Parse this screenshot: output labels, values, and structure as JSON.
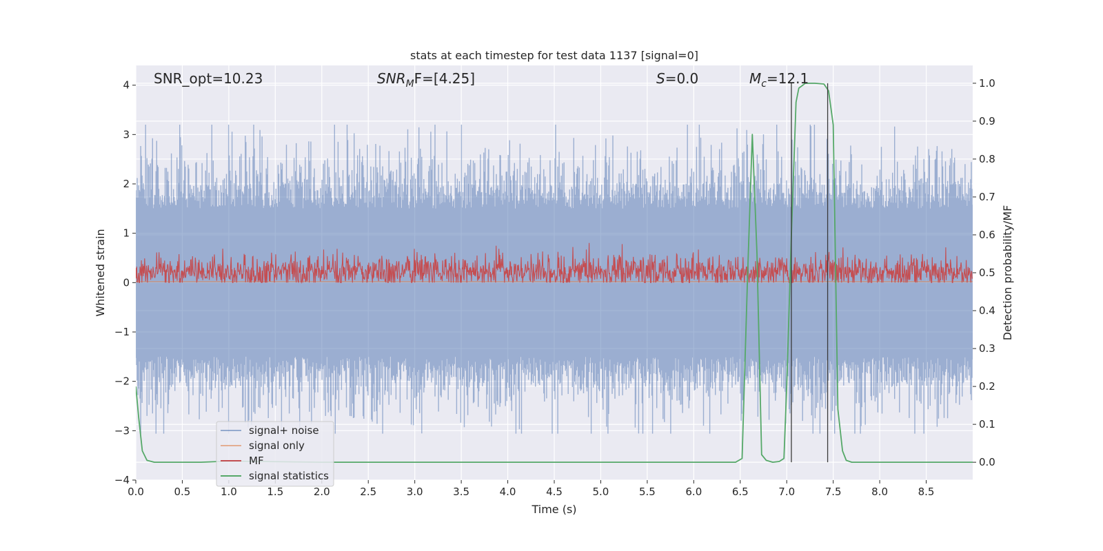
{
  "chart_data": {
    "type": "line",
    "title": "stats at each timestep for test data 1137 [signal=0]",
    "xlabel": "Time (s)",
    "ylabel_left": "Whitened strain",
    "ylabel_right": "Detection probability/MF",
    "xlim": [
      0.0,
      9.0
    ],
    "ylim_left": [
      -4.0,
      4.4
    ],
    "ylim_right": [
      -0.047,
      1.047
    ],
    "grid": true,
    "legend_position": "lower-left",
    "x_ticks": [
      0.0,
      0.5,
      1.0,
      1.5,
      2.0,
      2.5,
      3.0,
      3.5,
      4.0,
      4.5,
      5.0,
      5.5,
      6.0,
      6.5,
      7.0,
      7.5,
      8.0,
      8.5
    ],
    "x_tick_labels": [
      "0.0",
      "0.5",
      "1.0",
      "1.5",
      "2.0",
      "2.5",
      "3.0",
      "3.5",
      "4.0",
      "4.5",
      "5.0",
      "5.5",
      "6.0",
      "6.5",
      "7.0",
      "7.5",
      "8.0",
      "8.5"
    ],
    "y_left_ticks": [
      -4,
      -3,
      -2,
      -1,
      0,
      1,
      2,
      3,
      4
    ],
    "y_left_tick_labels": [
      "−4",
      "−3",
      "−2",
      "−1",
      "0",
      "1",
      "2",
      "3",
      "4"
    ],
    "y_right_ticks": [
      0.0,
      0.1,
      0.2,
      0.3,
      0.4,
      0.5,
      0.6,
      0.7,
      0.8,
      0.9,
      1.0
    ],
    "y_right_tick_labels": [
      "0.0",
      "0.1",
      "0.2",
      "0.3",
      "0.4",
      "0.5",
      "0.6",
      "0.7",
      "0.8",
      "0.9",
      "1.0"
    ],
    "annotations": {
      "snr_opt": "SNR_opt=10.23",
      "snr_mf_base": "SNR",
      "snr_mf_sub": "M",
      "snr_mf_rest": "F=[4.25]",
      "s_label": "S",
      "s_value": "=0.0",
      "mc_base": "M",
      "mc_sub": "c",
      "mc_value": "=12.1"
    },
    "vertical_lines_x": [
      7.05,
      7.44
    ],
    "series": [
      {
        "name": "signal+ noise",
        "color": "#4c72b0",
        "opacity": 0.5,
        "axis": "left",
        "kind": "noise",
        "x_range": [
          0,
          9
        ],
        "typical_band": [
          -1.5,
          1.5
        ],
        "peak_max": 4.0,
        "peak_min": -3.6
      },
      {
        "name": "signal only",
        "color": "#dd8452",
        "opacity": 0.6,
        "axis": "left",
        "x": [
          0,
          9
        ],
        "y": [
          0.02,
          0.02
        ]
      },
      {
        "name": "MF",
        "color": "#c44e52",
        "opacity": 1.0,
        "axis": "left",
        "kind": "mf",
        "x_range": [
          0,
          9
        ],
        "typical_band": [
          0.0,
          0.6
        ],
        "peak_max": 1.0
      },
      {
        "name": "signal statistics",
        "color": "#55a868",
        "opacity": 1.0,
        "axis": "right",
        "x": [
          0.0,
          0.03,
          0.07,
          0.12,
          0.2,
          0.35,
          0.7,
          1.0,
          2.0,
          3.0,
          4.0,
          5.0,
          6.0,
          6.3,
          6.45,
          6.52,
          6.58,
          6.63,
          6.68,
          6.73,
          6.78,
          6.85,
          6.92,
          6.97,
          7.0,
          7.05,
          7.1,
          7.13,
          7.2,
          7.3,
          7.4,
          7.45,
          7.5,
          7.55,
          7.6,
          7.64,
          7.7,
          7.8,
          8.0,
          8.5,
          9.0
        ],
        "y": [
          0.2,
          0.12,
          0.03,
          0.005,
          0.0,
          0.0,
          0.0,
          0.003,
          0.0,
          0.0,
          0.0,
          0.0,
          0.0,
          0.0,
          0.0,
          0.01,
          0.5,
          0.865,
          0.55,
          0.02,
          0.005,
          0.0,
          0.002,
          0.01,
          0.2,
          0.6,
          0.95,
          0.987,
          1.0,
          1.0,
          0.998,
          0.98,
          0.89,
          0.14,
          0.03,
          0.005,
          0.0,
          0.0,
          0.0,
          0.0,
          0.0
        ]
      }
    ]
  }
}
